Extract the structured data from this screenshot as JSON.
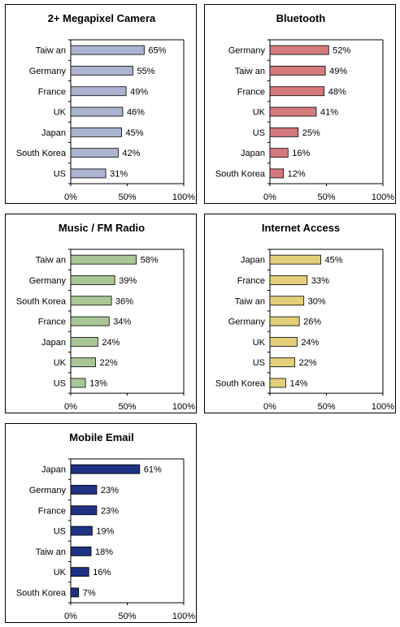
{
  "chart_data": [
    {
      "type": "bar",
      "orientation": "horizontal",
      "title": "2+ Megapixel Camera",
      "categories": [
        "Taiw an",
        "Germany",
        "France",
        "UK",
        "Japan",
        "South Korea",
        "US"
      ],
      "values": [
        65,
        55,
        49,
        46,
        45,
        42,
        31
      ],
      "value_labels": [
        "65%",
        "55%",
        "49%",
        "46%",
        "45%",
        "42%",
        "31%"
      ],
      "xlim": [
        0,
        100
      ],
      "xticks": [
        "0%",
        "50%",
        "100%"
      ],
      "bar_color": "#aab3cf",
      "grid": false,
      "legend": "none"
    },
    {
      "type": "bar",
      "orientation": "horizontal",
      "title": "Bluetooth",
      "categories": [
        "Germany",
        "Taiw an",
        "France",
        "UK",
        "US",
        "Japan",
        "South Korea"
      ],
      "values": [
        52,
        49,
        48,
        41,
        25,
        16,
        12
      ],
      "value_labels": [
        "52%",
        "49%",
        "48%",
        "41%",
        "25%",
        "16%",
        "12%"
      ],
      "xlim": [
        0,
        100
      ],
      "xticks": [
        "0%",
        "50%",
        "100%"
      ],
      "bar_color": "#d47a7c",
      "grid": false,
      "legend": "none"
    },
    {
      "type": "bar",
      "orientation": "horizontal",
      "title": "Music / FM Radio",
      "categories": [
        "Taiw an",
        "Germany",
        "South Korea",
        "France",
        "Japan",
        "UK",
        "US"
      ],
      "values": [
        58,
        39,
        36,
        34,
        24,
        22,
        13
      ],
      "value_labels": [
        "58%",
        "39%",
        "36%",
        "34%",
        "24%",
        "22%",
        "13%"
      ],
      "xlim": [
        0,
        100
      ],
      "xticks": [
        "0%",
        "50%",
        "100%"
      ],
      "bar_color": "#a9c796",
      "grid": false,
      "legend": "none"
    },
    {
      "type": "bar",
      "orientation": "horizontal",
      "title": "Internet Access",
      "categories": [
        "Japan",
        "France",
        "Taiw an",
        "Germany",
        "UK",
        "US",
        "South Korea"
      ],
      "values": [
        45,
        33,
        30,
        26,
        24,
        22,
        14
      ],
      "value_labels": [
        "45%",
        "33%",
        "30%",
        "26%",
        "24%",
        "22%",
        "14%"
      ],
      "xlim": [
        0,
        100
      ],
      "xticks": [
        "0%",
        "50%",
        "100%"
      ],
      "bar_color": "#e3cf7a",
      "grid": false,
      "legend": "none"
    },
    {
      "type": "bar",
      "orientation": "horizontal",
      "title": "Mobile Email",
      "categories": [
        "Japan",
        "Germany",
        "France",
        "US",
        "Taiw an",
        "UK",
        "South Korea"
      ],
      "values": [
        61,
        23,
        23,
        19,
        18,
        16,
        7
      ],
      "value_labels": [
        "61%",
        "23%",
        "23%",
        "19%",
        "18%",
        "16%",
        "7%"
      ],
      "xlim": [
        0,
        100
      ],
      "xticks": [
        "0%",
        "50%",
        "100%"
      ],
      "bar_color": "#1f3283",
      "grid": false,
      "legend": "none"
    }
  ]
}
